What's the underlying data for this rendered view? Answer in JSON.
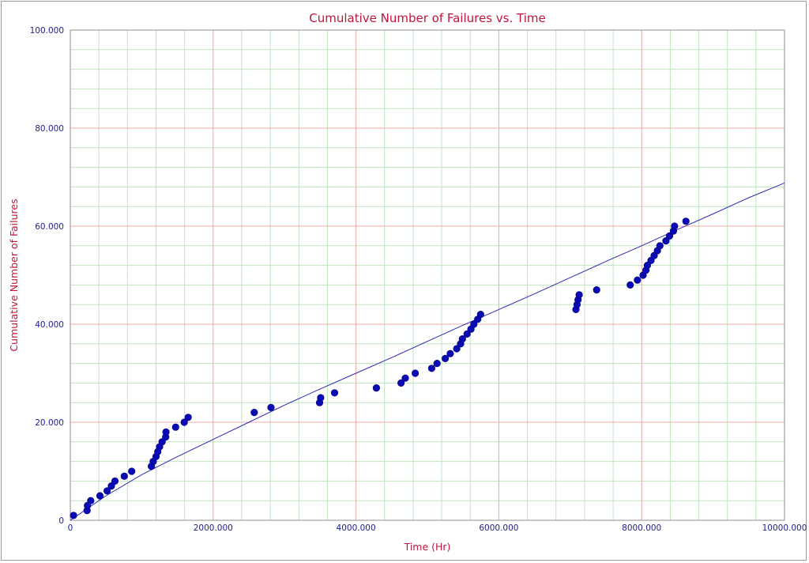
{
  "chart_data": {
    "type": "scatter",
    "title": "Cumulative Number of Failures vs. Time",
    "xlabel": "Time (Hr)",
    "ylabel": "Cumulative Number of Failures",
    "xlim": [
      0,
      10000
    ],
    "ylim": [
      0,
      100
    ],
    "x_ticks": [
      0,
      2000,
      4000,
      6000,
      8000,
      10000
    ],
    "x_tick_labels": [
      "0",
      "2000.000",
      "4000.000",
      "6000.000",
      "8000.000",
      "10000.000"
    ],
    "y_ticks": [
      0,
      20,
      40,
      60,
      80,
      100
    ],
    "y_tick_labels": [
      "0",
      "20.000",
      "40.000",
      "60.000",
      "80.000",
      "100.000"
    ],
    "grid": true,
    "colors": {
      "title": "#c0143c",
      "axis_label": "#c0143c",
      "tick_label": "#1e1e8c",
      "major_grid": "#f0a8a8",
      "minor_grid": "#bfe5bf",
      "points": "#0a0ab4",
      "fit_line": "#2a2ab0"
    },
    "series": [
      {
        "kind": "points",
        "x": [
          45,
          235,
          240,
          285,
          415,
          515,
          575,
          625,
          755,
          860,
          1135,
          1160,
          1200,
          1225,
          1250,
          1285,
          1335,
          1340,
          1475,
          1595,
          1650,
          2575,
          2810,
          3490,
          3505,
          3700,
          4285,
          4630,
          4690,
          4830,
          5060,
          5135,
          5250,
          5320,
          5410,
          5465,
          5490,
          5555,
          5610,
          5650,
          5705,
          5745,
          7080,
          7095,
          7110,
          7125,
          7370,
          7840,
          7940,
          8020,
          8060,
          8080,
          8130,
          8175,
          8220,
          8255,
          8340,
          8390,
          8445,
          8460,
          8620
        ],
        "y": [
          1,
          2,
          3,
          4,
          5,
          6,
          7,
          8,
          9,
          10,
          11,
          12,
          13,
          14,
          15,
          16,
          17,
          18,
          19,
          20,
          21,
          22,
          23,
          24,
          25,
          26,
          27,
          28,
          29,
          30,
          31,
          32,
          33,
          34,
          35,
          36,
          37,
          38,
          39,
          40,
          41,
          42,
          43,
          44,
          45,
          46,
          47,
          48,
          49,
          50,
          51,
          52,
          53,
          54,
          55,
          56,
          57,
          58,
          59,
          60,
          61
        ]
      },
      {
        "kind": "fit-line",
        "x": [
          0,
          500,
          1000,
          1500,
          2000,
          2500,
          3000,
          3500,
          4000,
          4500,
          5000,
          5500,
          6000,
          6500,
          7000,
          7500,
          8000,
          8500,
          9000,
          9500,
          10000
        ],
        "y": [
          0,
          5.0,
          9.3,
          13.0,
          16.5,
          20.0,
          23.5,
          26.8,
          30.0,
          33.2,
          36.5,
          39.8,
          43.0,
          46.2,
          49.5,
          52.8,
          56.0,
          59.3,
          62.5,
          65.8,
          68.8
        ]
      }
    ]
  }
}
